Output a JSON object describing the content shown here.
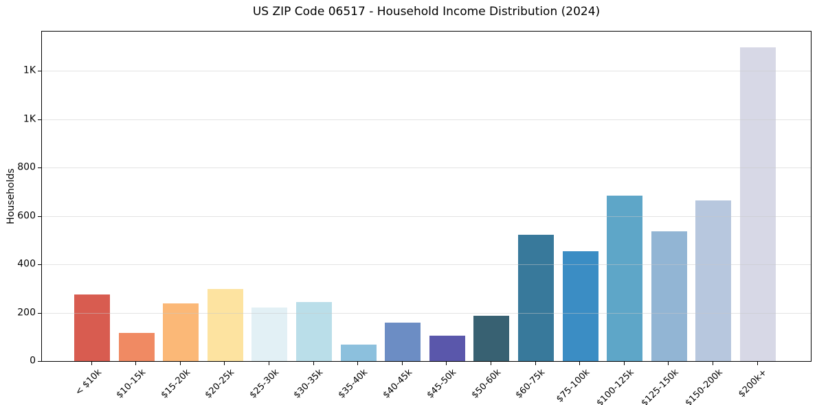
{
  "chart_data": {
    "type": "bar",
    "title": "US ZIP Code 06517 - Household Income Distribution (2024)",
    "xlabel": "",
    "ylabel": "Households",
    "categories": [
      "< $10k",
      "$10-15k",
      "$15-20k",
      "$20-25k",
      "$25-30k",
      "$30-35k",
      "$35-40k",
      "$40-45k",
      "$45-50k",
      "$50-60k",
      "$60-75k",
      "$75-100k",
      "$100-125k",
      "$125-150k",
      "$150-200k",
      "$200k+"
    ],
    "values": [
      275,
      117,
      237,
      297,
      221,
      244,
      68,
      158,
      105,
      187,
      523,
      455,
      685,
      535,
      663,
      1297
    ],
    "bar_colors": [
      "#d85c50",
      "#f08a63",
      "#fbb877",
      "#fde3a0",
      "#e2f0f5",
      "#badee9",
      "#8cc0dd",
      "#6c8dc4",
      "#5a57ab",
      "#386172",
      "#38799b",
      "#3b8dc4",
      "#5ea6c8",
      "#92b5d4",
      "#b7c7de",
      "#d7d8e6"
    ],
    "ylim": [
      0,
      1362
    ],
    "yticks": [
      {
        "value": 0,
        "label": "0"
      },
      {
        "value": 200,
        "label": "200"
      },
      {
        "value": 400,
        "label": "400"
      },
      {
        "value": 600,
        "label": "600"
      },
      {
        "value": 800,
        "label": "800"
      },
      {
        "value": 1000,
        "label": "1K"
      },
      {
        "value": 1200,
        "label": "1K"
      }
    ],
    "grid": "y",
    "gridline_color": "#c8c8c8",
    "spine_color": "#000000",
    "background_color": "#ffffff",
    "legend": "none"
  }
}
